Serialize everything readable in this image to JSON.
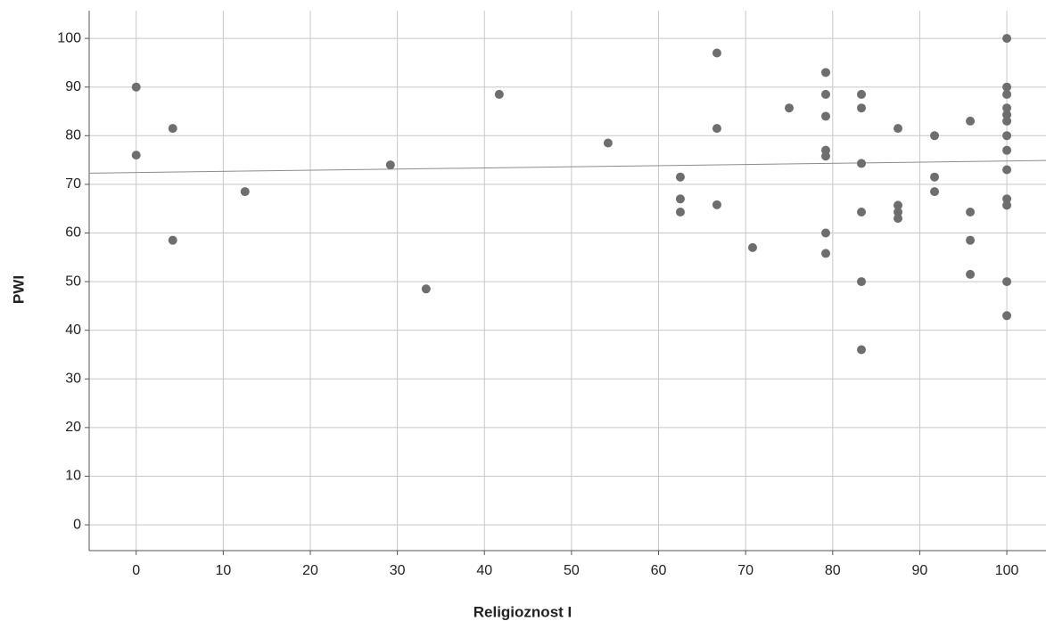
{
  "chart_data": {
    "type": "scatter",
    "x_label": "Religioznost I",
    "y_label": "PWI",
    "x": [
      0,
      0,
      4.2,
      4.2,
      12.5,
      29.2,
      33.3,
      41.7,
      54.2,
      62.5,
      62.5,
      62.5,
      66.7,
      66.7,
      66.7,
      70.8,
      75,
      79.2,
      79.2,
      79.2,
      79.2,
      79.2,
      79.2,
      79.2,
      83.3,
      83.3,
      83.3,
      83.3,
      83.3,
      83.3,
      87.5,
      87.5,
      87.5,
      87.5,
      91.7,
      91.7,
      91.7,
      95.8,
      95.8,
      95.8,
      95.8,
      100,
      100,
      100,
      100,
      100,
      100,
      100,
      100,
      100,
      100,
      100,
      100,
      100
    ],
    "values": [
      90,
      76,
      81.5,
      58.5,
      68.5,
      74,
      48.5,
      88.5,
      78.5,
      71.5,
      67,
      64.3,
      97,
      81.5,
      65.8,
      57,
      85.7,
      93,
      88.5,
      84,
      77,
      75.8,
      60,
      55.8,
      88.5,
      85.7,
      74.3,
      64.3,
      50,
      36,
      81.5,
      65.7,
      64.3,
      63,
      80,
      71.5,
      68.5,
      83,
      64.3,
      58.5,
      51.5,
      100,
      90,
      88.5,
      85.7,
      84.3,
      83,
      80,
      77,
      73,
      67,
      65.7,
      50,
      43
    ],
    "color": "#6e6e6e",
    "fit_line": {
      "x": [
        -5.4,
        104.5
      ],
      "values": [
        72.3,
        74.9
      ],
      "color": "#8c8c8c"
    },
    "xlim": [
      -5.4,
      104.5
    ],
    "xticks": [
      0,
      10,
      20,
      30,
      40,
      50,
      60,
      70,
      80,
      90,
      100
    ],
    "ylim": [
      -5.3,
      105.7
    ],
    "yticks": [
      0,
      10,
      20,
      30,
      40,
      50,
      60,
      70,
      80,
      90,
      100
    ],
    "grid": true
  }
}
